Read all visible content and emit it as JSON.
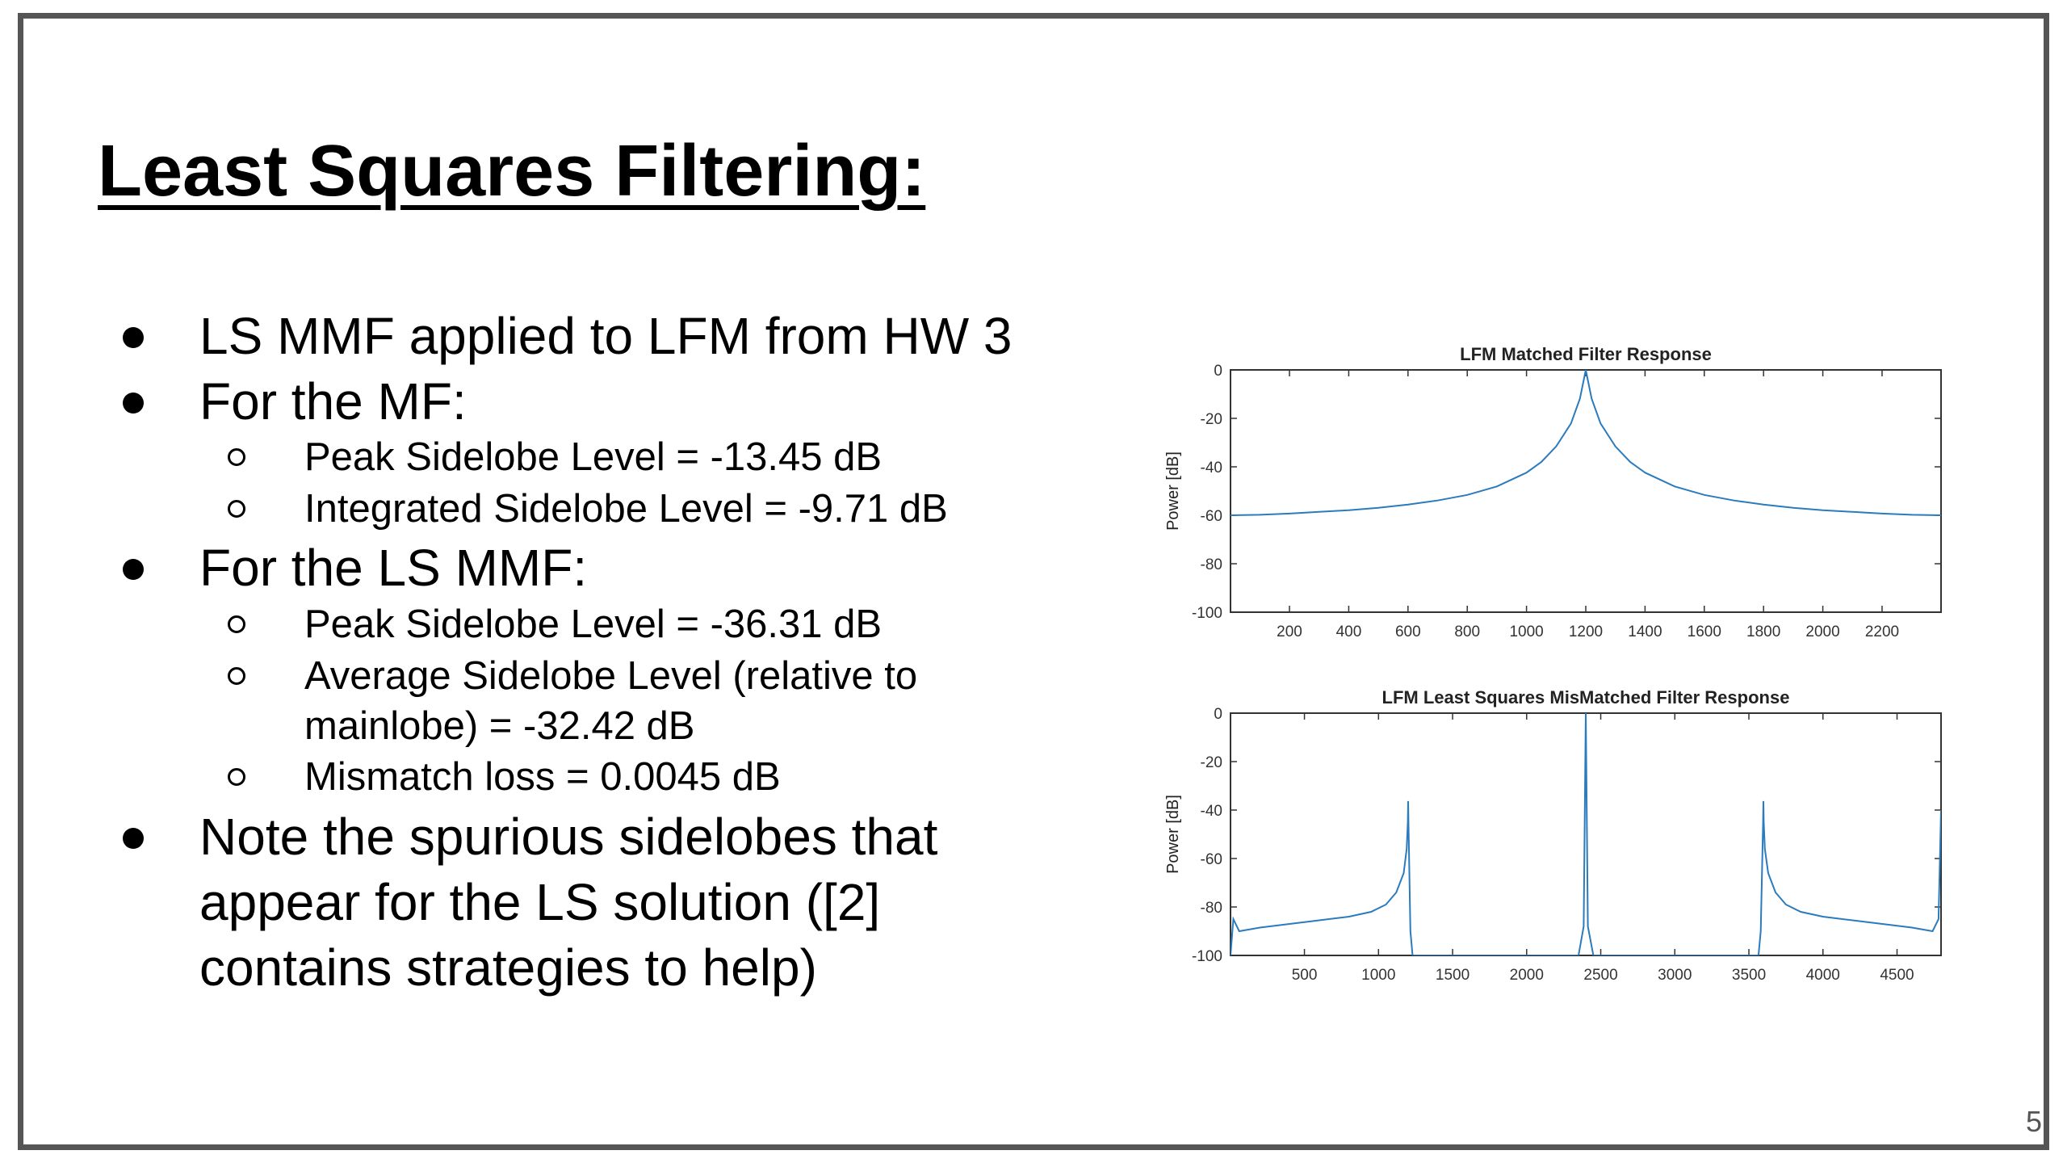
{
  "slide": {
    "title": "Least Squares Filtering:",
    "page_number": "5"
  },
  "bullets": {
    "b1": "LS MMF applied to LFM from HW 3",
    "b2": "For the MF:",
    "b2_sub1": "Peak Sidelobe Level = -13.45 dB",
    "b2_sub2": "Integrated Sidelobe Level =  -9.71 dB",
    "b3": "For the LS MMF:",
    "b3_sub1": "Peak Sidelobe Level = -36.31 dB",
    "b3_sub2_line1": "Average Sidelobe Level (relative to",
    "b3_sub2_line2": "mainlobe) =  -32.42 dB",
    "b3_sub3": "Mismatch loss = 0.0045 dB",
    "b4_line1": "Note the spurious sidelobes that",
    "b4_line2": "appear for the LS solution ([2]",
    "b4_line3": "contains strategies to help)"
  },
  "chart_data": [
    {
      "type": "line",
      "title": "LFM Matched Filter Response",
      "xlabel": "",
      "ylabel": "Power [dB]",
      "xlim": [
        1,
        2399
      ],
      "ylim": [
        -100,
        0
      ],
      "xticks": [
        200,
        400,
        600,
        800,
        1000,
        1200,
        1400,
        1600,
        1800,
        2000,
        2200
      ],
      "yticks": [
        0,
        -20,
        -40,
        -60,
        -80,
        -100
      ],
      "grid": false,
      "color": "#2b7bbd",
      "series": [
        {
          "x": [
            1,
            100,
            200,
            300,
            400,
            500,
            600,
            700,
            800,
            900,
            1000,
            1050,
            1100,
            1150,
            1180,
            1195,
            1200,
            1205,
            1220,
            1250,
            1300,
            1350,
            1400,
            1500,
            1600,
            1700,
            1800,
            1900,
            2000,
            2100,
            2200,
            2300,
            2399
          ],
          "y": [
            -60,
            -59.8,
            -59.3,
            -58.6,
            -57.9,
            -56.9,
            -55.6,
            -53.9,
            -51.6,
            -48.1,
            -42.4,
            -38.0,
            -31.6,
            -22.1,
            -11.9,
            -3.0,
            0,
            -3.0,
            -11.9,
            -22.1,
            -31.6,
            -38.0,
            -42.4,
            -48.1,
            -51.6,
            -53.9,
            -55.6,
            -56.9,
            -57.9,
            -58.6,
            -59.3,
            -59.8,
            -60
          ]
        }
      ]
    },
    {
      "type": "line",
      "title": "LFM Least Squares MisMatched Filter Response",
      "xlabel": "",
      "ylabel": "Power [dB]",
      "xlim": [
        1,
        4797
      ],
      "ylim": [
        -100,
        0
      ],
      "xticks": [
        500,
        1000,
        1500,
        2000,
        2500,
        3000,
        3500,
        4000,
        4500
      ],
      "yticks": [
        0,
        -20,
        -40,
        -60,
        -80,
        -100
      ],
      "grid": false,
      "color": "#2b7bbd",
      "series": [
        {
          "x": [
            1,
            20,
            60,
            200,
            400,
            600,
            800,
            950,
            1050,
            1120,
            1170,
            1190,
            1198,
            1200,
            1202,
            1215,
            1230,
            2350,
            2385,
            2399,
            2413,
            2450,
            3565,
            3580,
            3596,
            3598,
            3600,
            3608,
            3630,
            3680,
            3750,
            3850,
            4000,
            4200,
            4400,
            4600,
            4740,
            4780,
            4797
          ],
          "y": [
            -100,
            -85,
            -90,
            -88.5,
            -87,
            -85.5,
            -84,
            -82,
            -79,
            -74,
            -66,
            -56,
            -45,
            -36.3,
            -45,
            -90,
            -100,
            -100,
            -88,
            0,
            -88,
            -100,
            -100,
            -90,
            -45,
            -36.3,
            -45,
            -56,
            -66,
            -74,
            -79,
            -82,
            -84,
            -85.5,
            -87,
            -88.5,
            -90,
            -85,
            -40
          ]
        }
      ]
    }
  ]
}
